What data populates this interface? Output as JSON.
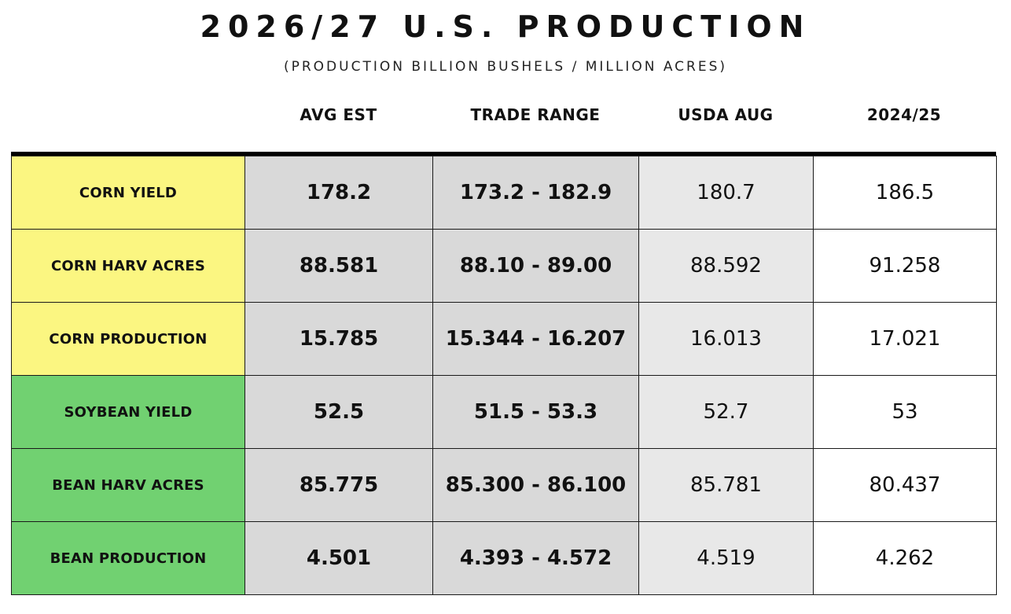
{
  "title": "2026/27 U.S. PRODUCTION",
  "subtitle": "(PRODUCTION BILLION BUSHELS / MILLION ACRES)",
  "columns": {
    "label": "",
    "avg_est": "AVG EST",
    "trade_range": "TRADE RANGE",
    "usda_aug": "USDA AUG",
    "prior_year": "2024/25"
  },
  "colors": {
    "corn_label_bg": "#fbf681",
    "bean_label_bg": "#71d171",
    "estimate_bg": "#d9d9d9",
    "usda_bg": "#e8e8e8"
  },
  "rows": [
    {
      "label": "CORN YIELD",
      "group": "corn",
      "avg_est": "178.2",
      "trade_range": "173.2 - 182.9",
      "usda_aug": "180.7",
      "prior_year": "186.5"
    },
    {
      "label": "CORN HARV ACRES",
      "group": "corn",
      "avg_est": "88.581",
      "trade_range": "88.10 - 89.00",
      "usda_aug": "88.592",
      "prior_year": "91.258"
    },
    {
      "label": "CORN PRODUCTION",
      "group": "corn",
      "avg_est": "15.785",
      "trade_range": "15.344 - 16.207",
      "usda_aug": "16.013",
      "prior_year": "17.021"
    },
    {
      "label": "SOYBEAN YIELD",
      "group": "bean",
      "avg_est": "52.5",
      "trade_range": "51.5 - 53.3",
      "usda_aug": "52.7",
      "prior_year": "53"
    },
    {
      "label": "BEAN HARV ACRES",
      "group": "bean",
      "avg_est": "85.775",
      "trade_range": "85.300 - 86.100",
      "usda_aug": "85.781",
      "prior_year": "80.437"
    },
    {
      "label": "BEAN PRODUCTION",
      "group": "bean",
      "avg_est": "4.501",
      "trade_range": "4.393 - 4.572",
      "usda_aug": "4.519",
      "prior_year": "4.262"
    }
  ]
}
